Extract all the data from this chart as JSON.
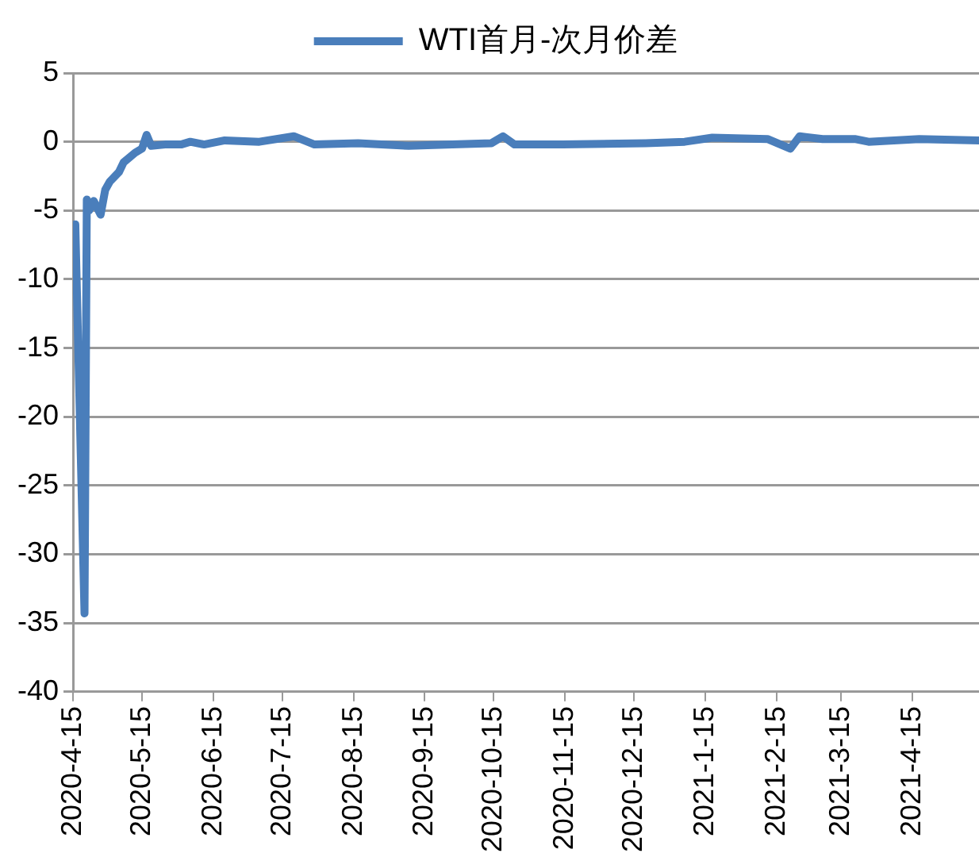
{
  "chart_data": {
    "type": "line",
    "legend": "top",
    "grid": "y",
    "marker": "none",
    "line_style": "solid",
    "series": [
      {
        "name": "WTI首月-次月价差",
        "color": "#4a7ebb",
        "x": [
          "2020-04-16",
          "2020-04-20",
          "2020-04-21",
          "2020-04-22",
          "2020-04-24",
          "2020-04-27",
          "2020-04-29",
          "2020-05-01",
          "2020-05-05",
          "2020-05-07",
          "2020-05-12",
          "2020-05-15",
          "2020-05-17",
          "2020-05-19",
          "2020-05-25",
          "2020-06-01",
          "2020-06-05",
          "2020-06-11",
          "2020-06-20",
          "2020-07-05",
          "2020-07-20",
          "2020-07-29",
          "2020-08-17",
          "2020-09-08",
          "2020-09-27",
          "2020-10-14",
          "2020-10-19",
          "2020-10-24",
          "2020-11-14",
          "2020-12-20",
          "2021-01-06",
          "2021-01-18",
          "2021-02-11",
          "2021-02-21",
          "2021-02-25",
          "2021-03-07",
          "2021-03-21",
          "2021-03-27",
          "2021-04-18",
          "2021-05-14"
        ],
        "values": [
          -6.0,
          -34.3,
          -4.2,
          -5.0,
          -4.3,
          -5.3,
          -3.5,
          -2.9,
          -2.2,
          -1.5,
          -0.8,
          -0.5,
          0.5,
          -0.3,
          -0.2,
          -0.2,
          0.0,
          -0.2,
          0.1,
          0.0,
          0.4,
          -0.2,
          -0.1,
          -0.3,
          -0.2,
          -0.1,
          0.4,
          -0.2,
          -0.2,
          -0.1,
          0.0,
          0.3,
          0.2,
          -0.5,
          0.4,
          0.2,
          0.2,
          0.0,
          0.2,
          0.1
        ]
      }
    ],
    "xlim": [
      "2020-04-15",
      "2021-05-14"
    ],
    "xticks": [
      {
        "value": "2020-04-15",
        "label": "2020-4-15"
      },
      {
        "value": "2020-05-15",
        "label": "2020-5-15"
      },
      {
        "value": "2020-06-15",
        "label": "2020-6-15"
      },
      {
        "value": "2020-07-15",
        "label": "2020-7-15"
      },
      {
        "value": "2020-08-15",
        "label": "2020-8-15"
      },
      {
        "value": "2020-09-15",
        "label": "2020-9-15"
      },
      {
        "value": "2020-10-15",
        "label": "2020-10-15"
      },
      {
        "value": "2020-11-15",
        "label": "2020-11-15"
      },
      {
        "value": "2020-12-15",
        "label": "2020-12-15"
      },
      {
        "value": "2021-01-15",
        "label": "2021-1-15"
      },
      {
        "value": "2021-02-15",
        "label": "2021-2-15"
      },
      {
        "value": "2021-03-15",
        "label": "2021-3-15"
      },
      {
        "value": "2021-04-15",
        "label": "2021-4-15"
      }
    ],
    "ylim": [
      -40,
      5
    ],
    "yticks": [
      -40,
      -35,
      -30,
      -25,
      -20,
      -15,
      -10,
      -5,
      0,
      5
    ]
  }
}
